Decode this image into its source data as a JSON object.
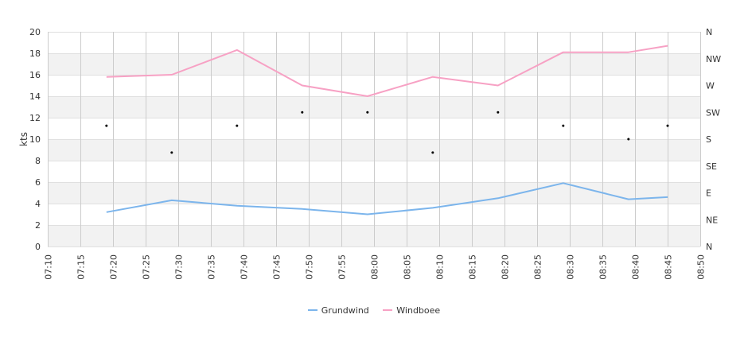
{
  "chart_data": {
    "type": "line",
    "ylabel": "kts",
    "ylim": [
      0,
      20
    ],
    "y_ticks": [
      "0",
      "2",
      "4",
      "6",
      "8",
      "10",
      "12",
      "14",
      "16",
      "18",
      "20"
    ],
    "y2_ticks": [
      "N",
      "NE",
      "E",
      "SE",
      "S",
      "SW",
      "W",
      "NW",
      "N"
    ],
    "x_ticks": [
      "07:10",
      "07:15",
      "07:20",
      "07:25",
      "07:30",
      "07:35",
      "07:40",
      "07:45",
      "07:50",
      "07:55",
      "08:00",
      "08:05",
      "08:10",
      "08:15",
      "08:20",
      "08:25",
      "08:30",
      "08:35",
      "08:40",
      "08:45",
      "08:50"
    ],
    "x_range": [
      "07:10",
      "08:50"
    ],
    "grid": true,
    "legend_position": "bottom-center",
    "x": [
      "07:19",
      "07:29",
      "07:39",
      "07:49",
      "07:59",
      "08:09",
      "08:19",
      "08:29",
      "08:39",
      "08:45"
    ],
    "series": [
      {
        "name": "Grundwind",
        "color": "#7cb5ec",
        "values": [
          3.2,
          4.3,
          3.8,
          3.5,
          3.0,
          3.6,
          4.5,
          5.9,
          4.4,
          4.6
        ]
      },
      {
        "name": "Windboee",
        "color": "#f7a1c4",
        "values": [
          15.8,
          16.0,
          18.3,
          15.0,
          14.0,
          15.8,
          15.0,
          18.1,
          18.1,
          18.7
        ]
      }
    ],
    "direction_points": [
      {
        "x": "07:19",
        "dir": "SSW"
      },
      {
        "x": "07:29",
        "dir": "SSE"
      },
      {
        "x": "07:39",
        "dir": "SSW"
      },
      {
        "x": "07:49",
        "dir": "SW"
      },
      {
        "x": "07:59",
        "dir": "SW"
      },
      {
        "x": "08:09",
        "dir": "SSE"
      },
      {
        "x": "08:19",
        "dir": "SW"
      },
      {
        "x": "08:29",
        "dir": "SSW"
      },
      {
        "x": "08:39",
        "dir": "S"
      },
      {
        "x": "08:45",
        "dir": "SSW"
      }
    ],
    "colors": {
      "band": "#f2f2f2",
      "grid": "#e0e0e0",
      "vgrid": "#cccccc",
      "axis": "#333333"
    }
  }
}
